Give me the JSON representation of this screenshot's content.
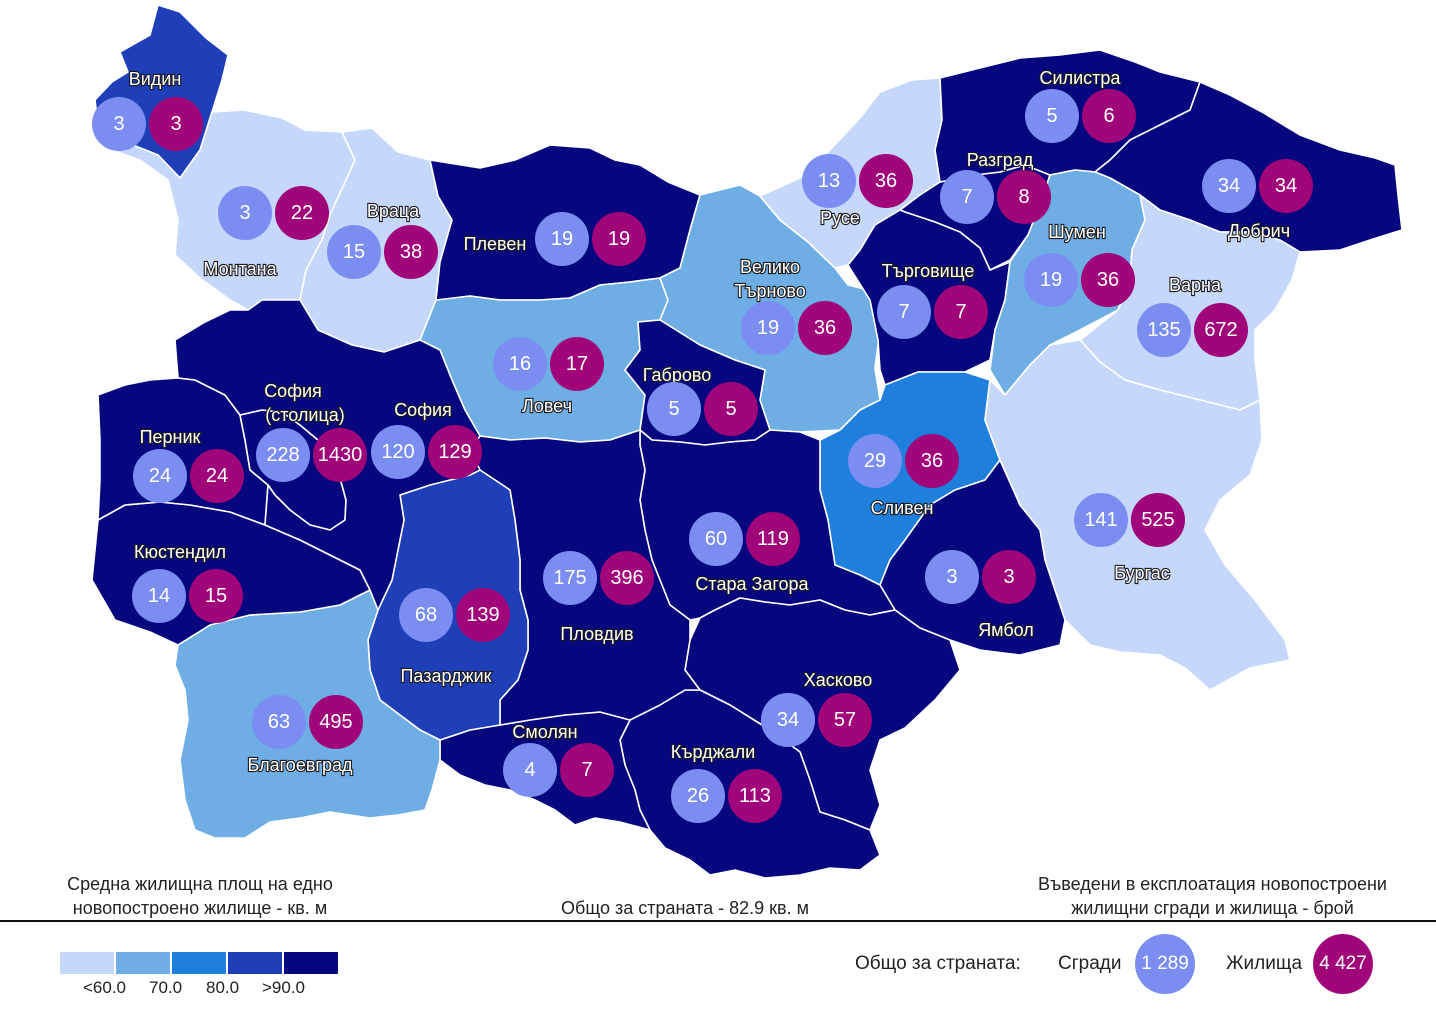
{
  "colors": {
    "lt60": "#c5d7fb",
    "c60_70": "#6fade5",
    "c70_80": "#1f7fdd",
    "c80_90": "#1f3fb8",
    "gt90": "#06077f",
    "buildings_circle": "#7b8df0",
    "dwellings_circle": "#a0057a"
  },
  "regions": [
    {
      "id": "vidin",
      "name": "Видин",
      "buildings": "3",
      "dwellings": "3",
      "category": "c80_90"
    },
    {
      "id": "montana",
      "name": "Монтана",
      "buildings": "3",
      "dwellings": "22",
      "category": "lt60"
    },
    {
      "id": "vratsa",
      "name": "Враца",
      "buildings": "15",
      "dwellings": "38",
      "category": "lt60"
    },
    {
      "id": "pleven",
      "name": "Плевен",
      "buildings": "19",
      "dwellings": "19",
      "category": "gt90"
    },
    {
      "id": "lovech",
      "name": "Ловеч",
      "buildings": "16",
      "dwellings": "17",
      "category": "c60_70"
    },
    {
      "id": "veliko",
      "name": "Велико Търново",
      "buildings": "19",
      "dwellings": "36",
      "category": "c60_70"
    },
    {
      "id": "gabrovo",
      "name": "Габрово",
      "buildings": "5",
      "dwellings": "5",
      "category": "gt90"
    },
    {
      "id": "ruse",
      "name": "Русе",
      "buildings": "13",
      "dwellings": "36",
      "category": "lt60"
    },
    {
      "id": "razgrad",
      "name": "Разград",
      "buildings": "7",
      "dwellings": "8",
      "category": "gt90"
    },
    {
      "id": "silistra",
      "name": "Силистра",
      "buildings": "5",
      "dwellings": "6",
      "category": "gt90"
    },
    {
      "id": "dobrich",
      "name": "Добрич",
      "buildings": "34",
      "dwellings": "34",
      "category": "gt90"
    },
    {
      "id": "targovishte",
      "name": "Търговище",
      "buildings": "7",
      "dwellings": "7",
      "category": "gt90"
    },
    {
      "id": "shumen",
      "name": "Шумен",
      "buildings": "19",
      "dwellings": "36",
      "category": "c60_70"
    },
    {
      "id": "varna",
      "name": "Варна",
      "buildings": "135",
      "dwellings": "672",
      "category": "lt60"
    },
    {
      "id": "sliven",
      "name": "Сливен",
      "buildings": "29",
      "dwellings": "36",
      "category": "c70_80"
    },
    {
      "id": "burgas",
      "name": "Бургас",
      "buildings": "141",
      "dwellings": "525",
      "category": "lt60"
    },
    {
      "id": "yambol",
      "name": "Ямбол",
      "buildings": "3",
      "dwellings": "3",
      "category": "gt90"
    },
    {
      "id": "stara_zagora",
      "name": "Стара Загора",
      "buildings": "60",
      "dwellings": "119",
      "category": "gt90"
    },
    {
      "id": "haskovo",
      "name": "Хасково",
      "buildings": "34",
      "dwellings": "57",
      "category": "gt90"
    },
    {
      "id": "kardzhali",
      "name": "Кърджали",
      "buildings": "26",
      "dwellings": "113",
      "category": "gt90"
    },
    {
      "id": "smolyan",
      "name": "Смолян",
      "buildings": "4",
      "dwellings": "7",
      "category": "gt90"
    },
    {
      "id": "plovdiv",
      "name": "Пловдив",
      "buildings": "175",
      "dwellings": "396",
      "category": "gt90"
    },
    {
      "id": "pazardzhik",
      "name": "Пазарджик",
      "buildings": "68",
      "dwellings": "139",
      "category": "c80_90"
    },
    {
      "id": "blagoevgrad",
      "name": "Благоевград",
      "buildings": "63",
      "dwellings": "495",
      "category": "c60_70"
    },
    {
      "id": "kyustendil",
      "name": "Кюстендил",
      "buildings": "14",
      "dwellings": "15",
      "category": "gt90"
    },
    {
      "id": "pernik",
      "name": "Перник",
      "buildings": "24",
      "dwellings": "24",
      "category": "gt90"
    },
    {
      "id": "sofia_capital",
      "name": "София (столица)",
      "buildings": "228",
      "dwellings": "1430",
      "category": "gt90"
    },
    {
      "id": "sofia_region",
      "name": "София",
      "buildings": "120",
      "dwellings": "129",
      "category": "gt90"
    }
  ],
  "footer": {
    "left_title_line1": "Средна жилищна площ на едно",
    "left_title_line2": "новопостроено жилище - кв. м",
    "center_text": "Общо за страната - 82.9 кв. м",
    "right_title_line1": "Въведени в експлоатация новопостроени",
    "right_title_line2": "жилищни сгради и жилища - брой"
  },
  "legend": {
    "items": [
      {
        "color_key": "lt60"
      },
      {
        "color_key": "c60_70"
      },
      {
        "color_key": "c70_80"
      },
      {
        "color_key": "c80_90"
      },
      {
        "color_key": "gt90"
      }
    ],
    "labels": [
      "<60.0",
      "70.0",
      "80.0",
      ">90.0"
    ]
  },
  "totals": {
    "label": "Общо за страната:",
    "buildings_label": "Сгради",
    "buildings_value": "1 289",
    "dwellings_label": "Жилища",
    "dwellings_value": "4 427"
  }
}
